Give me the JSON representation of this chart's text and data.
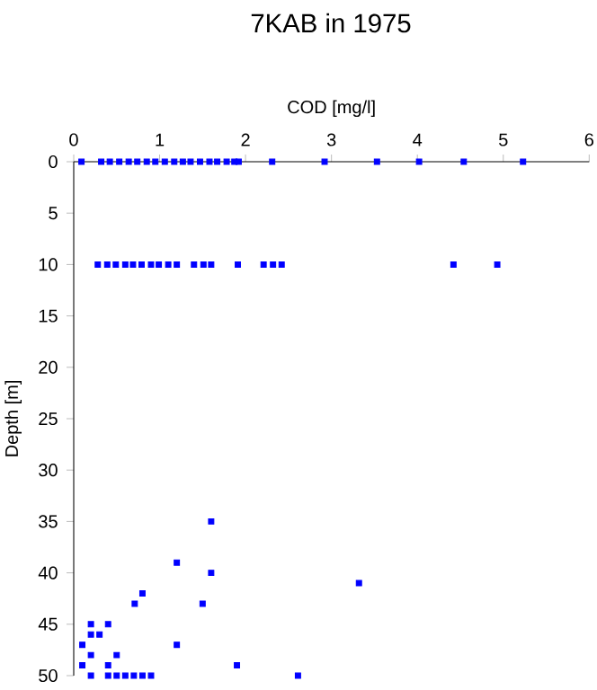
{
  "chart_data": {
    "type": "scatter",
    "title": "7KAB in 1975",
    "xlabel": "COD [mg/l]",
    "ylabel": "Depth [m]",
    "xlim": [
      0,
      6
    ],
    "xticks": [
      0,
      1,
      2,
      3,
      4,
      5,
      6
    ],
    "ylim": [
      50,
      0
    ],
    "yticks": [
      0,
      5,
      10,
      15,
      20,
      25,
      30,
      35,
      40,
      45,
      50
    ],
    "marker": "square",
    "series": [
      {
        "color": "#0000ff",
        "x": [
          0.09,
          0.32,
          0.42,
          0.53,
          0.64,
          0.74,
          0.85,
          0.95,
          1.06,
          1.17,
          1.27,
          1.36,
          1.47,
          1.58,
          1.67,
          1.78,
          1.87,
          1.92,
          2.31,
          2.92,
          3.53,
          4.02,
          4.54,
          5.23,
          0.28,
          0.39,
          0.49,
          0.6,
          0.69,
          0.79,
          0.9,
          0.99,
          1.1,
          1.2,
          1.4,
          1.51,
          1.6,
          1.91,
          2.21,
          2.32,
          2.42,
          4.42,
          4.93,
          1.6,
          1.2,
          1.6,
          3.32,
          0.8,
          0.71,
          1.5,
          0.2,
          0.4,
          0.2,
          0.3,
          0.1,
          1.2,
          0.2,
          0.5,
          0.1,
          0.4,
          1.9,
          0.2,
          0.4,
          0.5,
          0.6,
          0.7,
          0.8,
          0.9,
          2.61
        ],
        "values": [
          0,
          0,
          0,
          0,
          0,
          0,
          0,
          0,
          0,
          0,
          0,
          0,
          0,
          0,
          0,
          0,
          0,
          0,
          0,
          0,
          0,
          0,
          0,
          0,
          10,
          10,
          10,
          10,
          10,
          10,
          10,
          10,
          10,
          10,
          10,
          10,
          10,
          10,
          10,
          10,
          10,
          10,
          10,
          35,
          39,
          40,
          41,
          42,
          43,
          43,
          45,
          45,
          46,
          46,
          47,
          47,
          48,
          48,
          49,
          49,
          49,
          50,
          50,
          50,
          50,
          50,
          50,
          50,
          50
        ]
      }
    ]
  }
}
